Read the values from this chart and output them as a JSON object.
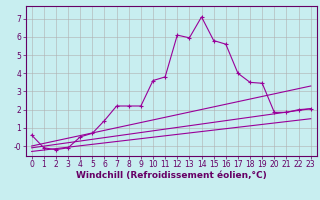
{
  "title": "",
  "xlabel": "Windchill (Refroidissement éolien,°C)",
  "ylabel": "",
  "bg_color": "#c8eef0",
  "grid_color": "#b0b0b0",
  "line_color": "#990099",
  "xlim": [
    -0.5,
    23.5
  ],
  "ylim": [
    -0.55,
    7.7
  ],
  "xticks": [
    0,
    1,
    2,
    3,
    4,
    5,
    6,
    7,
    8,
    9,
    10,
    11,
    12,
    13,
    14,
    15,
    16,
    17,
    18,
    19,
    20,
    21,
    22,
    23
  ],
  "yticks": [
    0,
    1,
    2,
    3,
    4,
    5,
    6,
    7
  ],
  "ytick_labels": [
    "-0",
    "1",
    "2",
    "3",
    "4",
    "5",
    "6",
    "7"
  ],
  "curve_x": [
    0,
    1,
    2,
    3,
    4,
    5,
    6,
    7,
    8,
    9,
    10,
    11,
    12,
    13,
    14,
    15,
    16,
    17,
    18,
    19,
    20,
    21,
    22,
    23
  ],
  "curve_y": [
    0.6,
    -0.1,
    -0.2,
    -0.1,
    0.5,
    0.7,
    1.4,
    2.2,
    2.2,
    2.2,
    3.6,
    3.8,
    6.1,
    5.95,
    7.1,
    5.8,
    5.6,
    4.0,
    3.5,
    3.45,
    1.85,
    1.85,
    2.0,
    2.05
  ],
  "line1_x": [
    0,
    23
  ],
  "line1_y": [
    0.0,
    3.3
  ],
  "line2_x": [
    0,
    23
  ],
  "line2_y": [
    -0.1,
    2.05
  ],
  "line3_x": [
    0,
    23
  ],
  "line3_y": [
    -0.3,
    1.5
  ],
  "font_color": "#660066",
  "tick_fontsize": 5.5,
  "label_fontsize": 6.5
}
